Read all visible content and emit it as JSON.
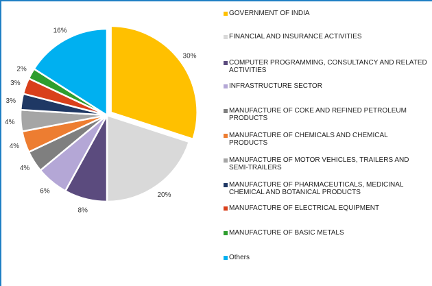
{
  "chart_data": {
    "type": "pie",
    "slices": [
      {
        "label": "GOVERNMENT OF INDIA",
        "value": 30,
        "value_label": "30%",
        "color": "#FFC000"
      },
      {
        "label": "FINANCIAL AND INSURANCE ACTIVITIES",
        "value": 20,
        "value_label": "20%",
        "color": "#D9D9D9"
      },
      {
        "label": "COMPUTER PROGRAMMING, CONSULTANCY AND RELATED ACTIVITIES",
        "value": 8,
        "value_label": "8%",
        "color": "#5B4B7E"
      },
      {
        "label": "INFRASTRUCTURE SECTOR",
        "value": 6,
        "value_label": "6%",
        "color": "#B4A7D6"
      },
      {
        "label": "MANUFACTURE OF COKE AND REFINED PETROLEUM PRODUCTS",
        "value": 4,
        "value_label": "4%",
        "color": "#7F7F7F"
      },
      {
        "label": "MANUFACTURE OF CHEMICALS AND CHEMICAL PRODUCTS",
        "value": 4,
        "value_label": "4%",
        "color": "#ED7D31"
      },
      {
        "label": "MANUFACTURE OF MOTOR VEHICLES, TRAILERS AND SEMI-TRAILERS",
        "value": 4,
        "value_label": "4%",
        "color": "#A5A5A5"
      },
      {
        "label": "MANUFACTURE OF PHARMACEUTICALS, MEDICINAL CHEMICAL AND BOTANICAL PRODUCTS",
        "value": 3,
        "value_label": "3%",
        "color": "#1F3864"
      },
      {
        "label": "MANUFACTURE OF ELECTRICAL EQUIPMENT",
        "value": 3,
        "value_label": "3%",
        "color": "#D9401B"
      },
      {
        "label": "MANUFACTURE OF BASIC METALS",
        "value": 2,
        "value_label": "2%",
        "color": "#2E9E2E"
      },
      {
        "label": "Others",
        "value": 16,
        "value_label": "16%",
        "color": "#00B0F0"
      }
    ],
    "legend": [
      {
        "text": "GOVERNMENT OF INDIA",
        "color": "#FFC000"
      },
      {
        "text": "FINANCIAL AND INSURANCE ACTIVITIES",
        "color": "#D9D9D9"
      },
      {
        "text": "COMPUTER PROGRAMMING, CONSULTANCY AND RELATED ACTIVITIES",
        "color": "#5B4B7E"
      },
      {
        "text": "INFRASTRUCTURE SECTOR",
        "color": "#B4A7D6"
      },
      {
        "text": "MANUFACTURE OF COKE AND REFINED PETROLEUM PRODUCTS",
        "color": "#7F7F7F"
      },
      {
        "text": "MANUFACTURE OF CHEMICALS AND CHEMICAL PRODUCTS",
        "color": "#ED7D31"
      },
      {
        "text": "MANUFACTURE OF MOTOR VEHICLES, TRAILERS AND SEMI-TRAILERS",
        "color": "#A5A5A5"
      },
      {
        "text": "MANUFACTURE OF PHARMACEUTICALS, MEDICINAL CHEMICAL AND BOTANICAL PRODUCTS",
        "color": "#1F3864"
      },
      {
        "text": "MANUFACTURE OF ELECTRICAL EQUIPMENT",
        "color": "#D9401B"
      },
      {
        "text": "MANUFACTURE OF BASIC METALS",
        "color": "#2E9E2E"
      },
      {
        "text": "Others",
        "color": "#00B0F0"
      }
    ],
    "legend_position": "right",
    "exploded_slice": "GOVERNMENT OF INDIA",
    "frame_color": "#1F7FC4"
  }
}
